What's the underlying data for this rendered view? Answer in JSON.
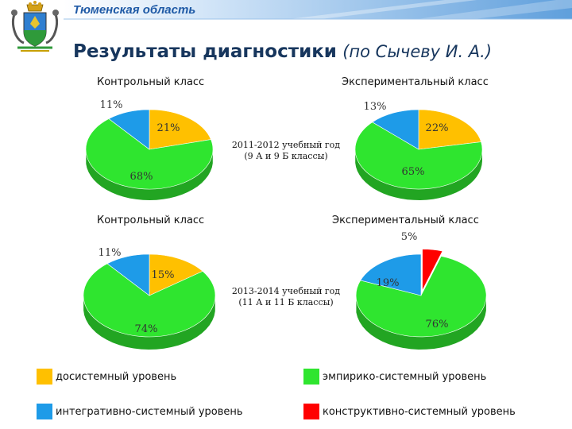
{
  "header": {
    "region": "Тюменская область",
    "title_main": "Результаты диагностики",
    "title_sub": "(по Сычеву И. А.)"
  },
  "colors": {
    "yellow": "#ffc000",
    "green": "#2fe52f",
    "blue": "#1e9be8",
    "red": "#ff0000",
    "header_blue": "#1f5aa6",
    "title": "#17365d"
  },
  "rows": [
    {
      "period": "2011-2012 учебный год",
      "classes": "(9 А и 9 Б классы)"
    },
    {
      "period": "2013-2014 учебный год",
      "classes": "(11 А и 11 Б классы)"
    }
  ],
  "chart_data": [
    {
      "type": "pie",
      "title": "Контрольный класс",
      "labels": [
        "21%",
        "68%",
        "11%"
      ],
      "slices": [
        {
          "category": "досистемный уровень",
          "value": 21
        },
        {
          "category": "эмпирико-системный уровень",
          "value": 68
        },
        {
          "category": "интегративно-системный уровень",
          "value": 11
        }
      ]
    },
    {
      "type": "pie",
      "title": "Экспериментальный класс",
      "labels": [
        "22%",
        "65%",
        "13%"
      ],
      "slices": [
        {
          "category": "досистемный уровень",
          "value": 22
        },
        {
          "category": "эмпирико-системный уровень",
          "value": 65
        },
        {
          "category": "интегративно-системный уровень",
          "value": 13
        }
      ]
    },
    {
      "type": "pie",
      "title": "Контрольный класс",
      "labels": [
        "15%",
        "74%",
        "11%"
      ],
      "slices": [
        {
          "category": "досистемный уровень",
          "value": 15
        },
        {
          "category": "эмпирико-системный уровень",
          "value": 74
        },
        {
          "category": "интегративно-системный уровень",
          "value": 11
        }
      ]
    },
    {
      "type": "pie",
      "title": "Экспериментальный класс",
      "labels": [
        "5%",
        "76%",
        "19%"
      ],
      "slices": [
        {
          "category": "конструктивно-системный уровень",
          "value": 5
        },
        {
          "category": "эмпирико-системный уровень",
          "value": 76
        },
        {
          "category": "интегративно-системный уровень",
          "value": 19
        }
      ]
    }
  ],
  "legend": [
    {
      "label": "досистемный уровень",
      "color": "#ffc000"
    },
    {
      "label": "эмпирико-системный уровень",
      "color": "#2fe52f"
    },
    {
      "label": "интегративно-системный уровень",
      "color": "#1e9be8"
    },
    {
      "label": "конструктивно-системный уровень",
      "color": "#ff0000"
    }
  ]
}
